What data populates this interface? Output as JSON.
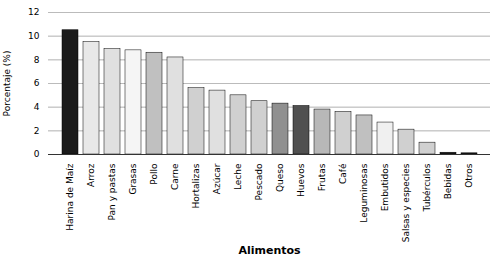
{
  "chart_data": {
    "type": "bar",
    "categories": [
      "Harina de Maíz",
      "Arroz",
      "Pan y pastas",
      "Grasas",
      "Pollo",
      "Carne",
      "Hortalizas",
      "Azúcar",
      "Leche",
      "Pescado",
      "Queso",
      "Huevos",
      "Frutas",
      "Café",
      "Leguminosas",
      "Embutidos",
      "Salsas y especies",
      "Tubérculos",
      "Bebidas",
      "Otros"
    ],
    "values": [
      10.5,
      9.5,
      8.9,
      8.8,
      8.6,
      8.2,
      5.6,
      5.4,
      5.0,
      4.5,
      4.3,
      4.1,
      3.8,
      3.6,
      3.3,
      2.7,
      2.1,
      1.0,
      0.15,
      0.1
    ],
    "colors": [
      "#1a1a1a",
      "#e8e8e8",
      "#e0e0e0",
      "#f5f5f5",
      "#c0c0c0",
      "#e0e0e0",
      "#d0d0d0",
      "#e0e0e0",
      "#d0d0d0",
      "#d0d0d0",
      "#909090",
      "#505050",
      "#b8b8b8",
      "#d0d0d0",
      "#c0c0c0",
      "#f0f0f0",
      "#d0d0d0",
      "#d0d0d0",
      "#1a1a1a",
      "#1a1a1a"
    ],
    "xlabel": "Alimentos",
    "ylabel": "Porcentaje (%)",
    "ylim": [
      0,
      12
    ],
    "yticks": [
      0,
      2,
      4,
      6,
      8,
      10,
      12
    ],
    "grid": true
  }
}
